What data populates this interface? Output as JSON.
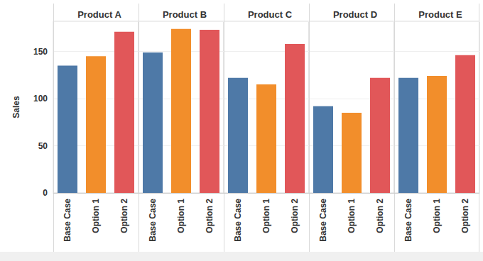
{
  "chart_data": [
    {
      "type": "bar",
      "title": "Product A",
      "y_label": "Sales",
      "categories": [
        "Base Case",
        "Option 1",
        "Option 2"
      ],
      "values": [
        135,
        145,
        171
      ],
      "colors": [
        "#4e79a7",
        "#f28e2b",
        "#e15759"
      ],
      "ylim": [
        0,
        182
      ],
      "yticks": [
        0,
        50,
        100,
        150
      ],
      "grid": true
    },
    {
      "type": "bar",
      "title": "Product B",
      "categories": [
        "Base Case",
        "Option 1",
        "Option 2"
      ],
      "values": [
        149,
        174,
        173
      ],
      "colors": [
        "#4e79a7",
        "#f28e2b",
        "#e15759"
      ],
      "ylim": [
        0,
        182
      ],
      "yticks": [
        0,
        50,
        100,
        150
      ],
      "grid": true,
      "tick_labels": "x"
    },
    {
      "type": "bar",
      "title": "Product C",
      "categories": [
        "Base Case",
        "Option 1",
        "Option 2"
      ],
      "values": [
        122,
        115,
        158
      ],
      "colors": [
        "#4e79a7",
        "#f28e2b",
        "#e15759"
      ],
      "ylim": [
        0,
        182
      ],
      "yticks": [
        0,
        50,
        100,
        150
      ],
      "grid": true,
      "tick_labels": "x"
    },
    {
      "type": "bar",
      "title": "Product D",
      "categories": [
        "Base Case",
        "Option 1",
        "Option 2"
      ],
      "values": [
        92,
        85,
        122
      ],
      "colors": [
        "#4e79a7",
        "#f28e2b",
        "#e15759"
      ],
      "ylim": [
        0,
        182
      ],
      "yticks": [
        0,
        50,
        100,
        150
      ],
      "grid": true,
      "tick_labels": "x"
    },
    {
      "type": "bar",
      "title": "Product E",
      "categories": [
        "Base Case",
        "Option 1",
        "Option 2"
      ],
      "values": [
        122,
        124,
        146
      ],
      "colors": [
        "#4e79a7",
        "#f28e2b",
        "#e15759"
      ],
      "ylim": [
        0,
        182
      ],
      "yticks": [
        0,
        50,
        100,
        150
      ],
      "grid": true,
      "tick_labels": "x"
    }
  ]
}
